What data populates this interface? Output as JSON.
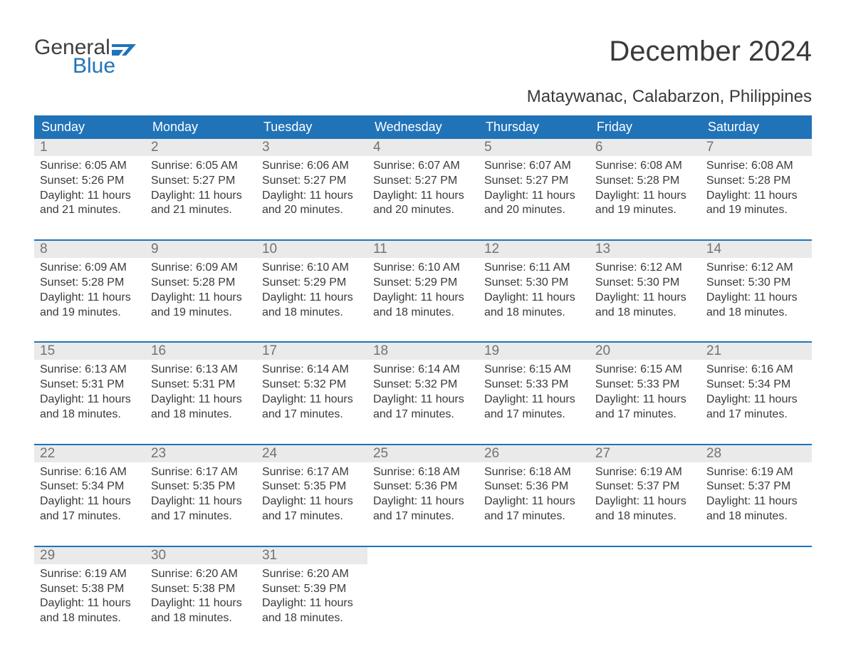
{
  "brand": {
    "text_general": "General",
    "text_blue": "Blue",
    "flag_color": "#2173b8"
  },
  "title": "December 2024",
  "location": "Mataywanac, Calabarzon, Philippines",
  "colors": {
    "header_bg": "#2173b8",
    "header_text": "#ffffff",
    "daynum_bg": "#eaeaea",
    "daynum_text": "#737373",
    "body_text": "#3a3a3a",
    "week_divider": "#2173b8",
    "page_bg": "#ffffff"
  },
  "day_headers": [
    "Sunday",
    "Monday",
    "Tuesday",
    "Wednesday",
    "Thursday",
    "Friday",
    "Saturday"
  ],
  "weeks": [
    [
      {
        "n": "1",
        "sunrise": "Sunrise: 6:05 AM",
        "sunset": "Sunset: 5:26 PM",
        "dl1": "Daylight: 11 hours",
        "dl2": "and 21 minutes."
      },
      {
        "n": "2",
        "sunrise": "Sunrise: 6:05 AM",
        "sunset": "Sunset: 5:27 PM",
        "dl1": "Daylight: 11 hours",
        "dl2": "and 21 minutes."
      },
      {
        "n": "3",
        "sunrise": "Sunrise: 6:06 AM",
        "sunset": "Sunset: 5:27 PM",
        "dl1": "Daylight: 11 hours",
        "dl2": "and 20 minutes."
      },
      {
        "n": "4",
        "sunrise": "Sunrise: 6:07 AM",
        "sunset": "Sunset: 5:27 PM",
        "dl1": "Daylight: 11 hours",
        "dl2": "and 20 minutes."
      },
      {
        "n": "5",
        "sunrise": "Sunrise: 6:07 AM",
        "sunset": "Sunset: 5:27 PM",
        "dl1": "Daylight: 11 hours",
        "dl2": "and 20 minutes."
      },
      {
        "n": "6",
        "sunrise": "Sunrise: 6:08 AM",
        "sunset": "Sunset: 5:28 PM",
        "dl1": "Daylight: 11 hours",
        "dl2": "and 19 minutes."
      },
      {
        "n": "7",
        "sunrise": "Sunrise: 6:08 AM",
        "sunset": "Sunset: 5:28 PM",
        "dl1": "Daylight: 11 hours",
        "dl2": "and 19 minutes."
      }
    ],
    [
      {
        "n": "8",
        "sunrise": "Sunrise: 6:09 AM",
        "sunset": "Sunset: 5:28 PM",
        "dl1": "Daylight: 11 hours",
        "dl2": "and 19 minutes."
      },
      {
        "n": "9",
        "sunrise": "Sunrise: 6:09 AM",
        "sunset": "Sunset: 5:28 PM",
        "dl1": "Daylight: 11 hours",
        "dl2": "and 19 minutes."
      },
      {
        "n": "10",
        "sunrise": "Sunrise: 6:10 AM",
        "sunset": "Sunset: 5:29 PM",
        "dl1": "Daylight: 11 hours",
        "dl2": "and 18 minutes."
      },
      {
        "n": "11",
        "sunrise": "Sunrise: 6:10 AM",
        "sunset": "Sunset: 5:29 PM",
        "dl1": "Daylight: 11 hours",
        "dl2": "and 18 minutes."
      },
      {
        "n": "12",
        "sunrise": "Sunrise: 6:11 AM",
        "sunset": "Sunset: 5:30 PM",
        "dl1": "Daylight: 11 hours",
        "dl2": "and 18 minutes."
      },
      {
        "n": "13",
        "sunrise": "Sunrise: 6:12 AM",
        "sunset": "Sunset: 5:30 PM",
        "dl1": "Daylight: 11 hours",
        "dl2": "and 18 minutes."
      },
      {
        "n": "14",
        "sunrise": "Sunrise: 6:12 AM",
        "sunset": "Sunset: 5:30 PM",
        "dl1": "Daylight: 11 hours",
        "dl2": "and 18 minutes."
      }
    ],
    [
      {
        "n": "15",
        "sunrise": "Sunrise: 6:13 AM",
        "sunset": "Sunset: 5:31 PM",
        "dl1": "Daylight: 11 hours",
        "dl2": "and 18 minutes."
      },
      {
        "n": "16",
        "sunrise": "Sunrise: 6:13 AM",
        "sunset": "Sunset: 5:31 PM",
        "dl1": "Daylight: 11 hours",
        "dl2": "and 18 minutes."
      },
      {
        "n": "17",
        "sunrise": "Sunrise: 6:14 AM",
        "sunset": "Sunset: 5:32 PM",
        "dl1": "Daylight: 11 hours",
        "dl2": "and 17 minutes."
      },
      {
        "n": "18",
        "sunrise": "Sunrise: 6:14 AM",
        "sunset": "Sunset: 5:32 PM",
        "dl1": "Daylight: 11 hours",
        "dl2": "and 17 minutes."
      },
      {
        "n": "19",
        "sunrise": "Sunrise: 6:15 AM",
        "sunset": "Sunset: 5:33 PM",
        "dl1": "Daylight: 11 hours",
        "dl2": "and 17 minutes."
      },
      {
        "n": "20",
        "sunrise": "Sunrise: 6:15 AM",
        "sunset": "Sunset: 5:33 PM",
        "dl1": "Daylight: 11 hours",
        "dl2": "and 17 minutes."
      },
      {
        "n": "21",
        "sunrise": "Sunrise: 6:16 AM",
        "sunset": "Sunset: 5:34 PM",
        "dl1": "Daylight: 11 hours",
        "dl2": "and 17 minutes."
      }
    ],
    [
      {
        "n": "22",
        "sunrise": "Sunrise: 6:16 AM",
        "sunset": "Sunset: 5:34 PM",
        "dl1": "Daylight: 11 hours",
        "dl2": "and 17 minutes."
      },
      {
        "n": "23",
        "sunrise": "Sunrise: 6:17 AM",
        "sunset": "Sunset: 5:35 PM",
        "dl1": "Daylight: 11 hours",
        "dl2": "and 17 minutes."
      },
      {
        "n": "24",
        "sunrise": "Sunrise: 6:17 AM",
        "sunset": "Sunset: 5:35 PM",
        "dl1": "Daylight: 11 hours",
        "dl2": "and 17 minutes."
      },
      {
        "n": "25",
        "sunrise": "Sunrise: 6:18 AM",
        "sunset": "Sunset: 5:36 PM",
        "dl1": "Daylight: 11 hours",
        "dl2": "and 17 minutes."
      },
      {
        "n": "26",
        "sunrise": "Sunrise: 6:18 AM",
        "sunset": "Sunset: 5:36 PM",
        "dl1": "Daylight: 11 hours",
        "dl2": "and 17 minutes."
      },
      {
        "n": "27",
        "sunrise": "Sunrise: 6:19 AM",
        "sunset": "Sunset: 5:37 PM",
        "dl1": "Daylight: 11 hours",
        "dl2": "and 18 minutes."
      },
      {
        "n": "28",
        "sunrise": "Sunrise: 6:19 AM",
        "sunset": "Sunset: 5:37 PM",
        "dl1": "Daylight: 11 hours",
        "dl2": "and 18 minutes."
      }
    ],
    [
      {
        "n": "29",
        "sunrise": "Sunrise: 6:19 AM",
        "sunset": "Sunset: 5:38 PM",
        "dl1": "Daylight: 11 hours",
        "dl2": "and 18 minutes."
      },
      {
        "n": "30",
        "sunrise": "Sunrise: 6:20 AM",
        "sunset": "Sunset: 5:38 PM",
        "dl1": "Daylight: 11 hours",
        "dl2": "and 18 minutes."
      },
      {
        "n": "31",
        "sunrise": "Sunrise: 6:20 AM",
        "sunset": "Sunset: 5:39 PM",
        "dl1": "Daylight: 11 hours",
        "dl2": "and 18 minutes."
      },
      null,
      null,
      null,
      null
    ]
  ]
}
